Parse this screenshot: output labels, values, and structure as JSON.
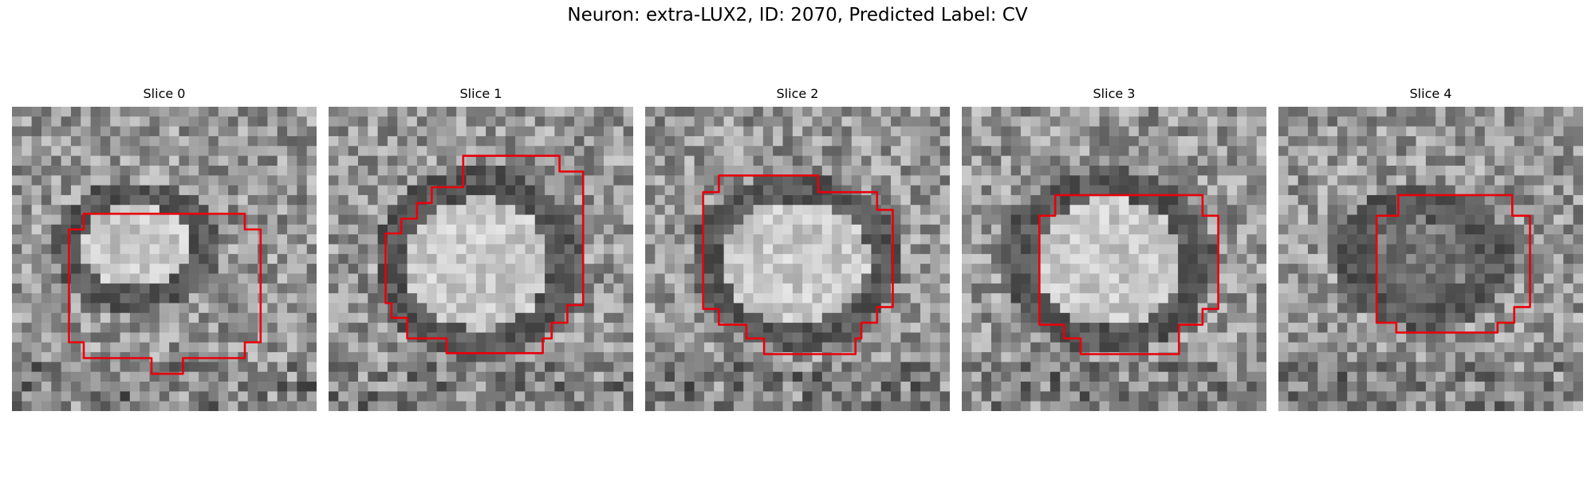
{
  "figure": {
    "title": "Neuron: extra-LUX2, ID: 2070, Predicted Label: CV",
    "outline_color": "#e8000b",
    "panels": [
      {
        "title": "Slice 0"
      },
      {
        "title": "Slice 1"
      },
      {
        "title": "Slice 2"
      },
      {
        "title": "Slice 3"
      },
      {
        "title": "Slice 4"
      }
    ]
  }
}
